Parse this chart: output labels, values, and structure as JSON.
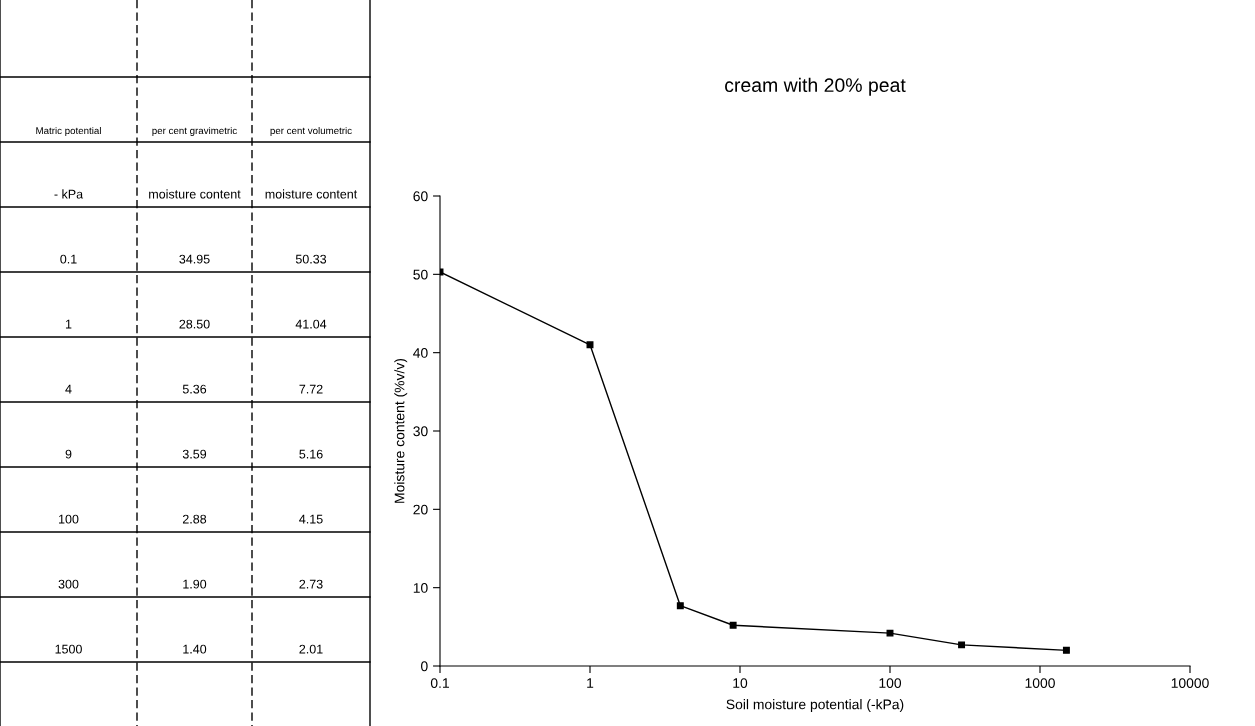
{
  "chart_data": [
    {
      "type": "other",
      "annotations": [
        "Matric potential",
        "per cent gravimetric",
        "per cent volumetric",
        "- kPa",
        "moisture content",
        "moisture content",
        "0.1",
        "34.95",
        "50.33",
        "1",
        "28.50",
        "41.04",
        "4",
        "5.36",
        "7.72",
        "9",
        "3.59",
        "5.16",
        "100",
        "2.88",
        "4.15",
        "300",
        "1.90",
        "2.73",
        "1500",
        "1.40",
        "2.01"
      ]
    },
    {
      "type": "line",
      "title": "cream with 20% peat",
      "xlabel": "Soil moisture potential (-kPa)",
      "ylabel": "Moisture content (%v/v)",
      "x": [
        0.1,
        1,
        4,
        9,
        100,
        300,
        1500
      ],
      "series": [
        {
          "color": "#000000",
          "values": [
            50.3,
            41.0,
            7.7,
            5.2,
            4.2,
            2.7,
            2.0
          ]
        }
      ],
      "log": "x",
      "xlim": [
        0.1,
        10000
      ],
      "xticks": [
        0.1,
        1,
        10,
        100,
        1000,
        10000
      ],
      "ylim": [
        0,
        60
      ],
      "yticks": [
        0,
        10,
        20,
        30,
        40,
        50,
        60
      ],
      "marker": "square",
      "line_style": "solid",
      "grid": false,
      "legend": false
    }
  ]
}
